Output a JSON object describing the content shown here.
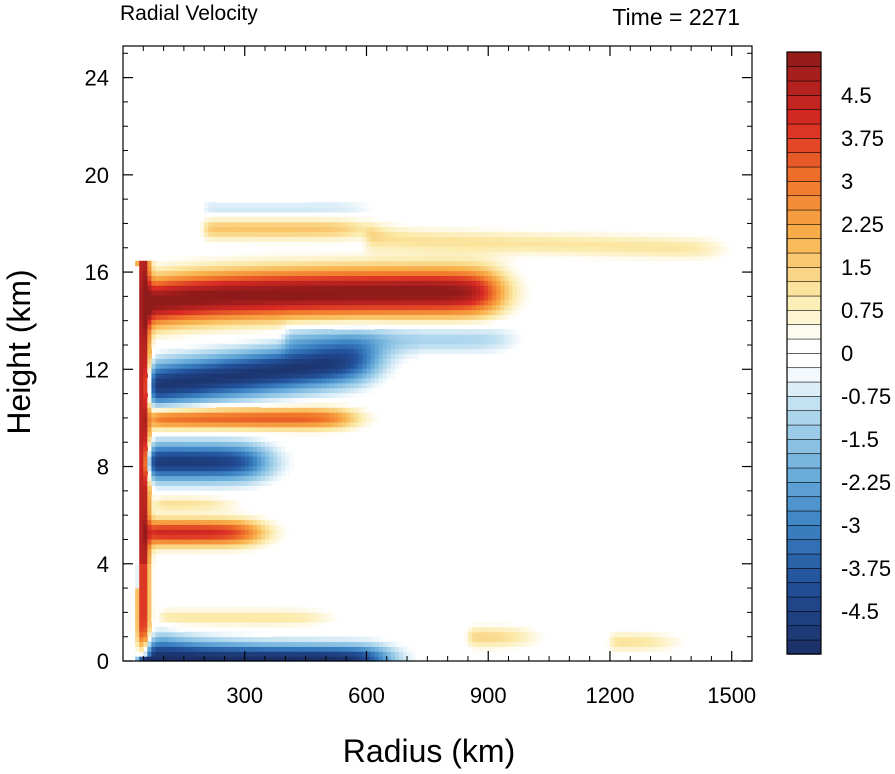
{
  "chart_data": {
    "type": "heatmap",
    "title": "Radial Velocity",
    "subtitle": "Time = 2271",
    "xlabel": "Radius (km)",
    "ylabel": "Height (km)",
    "xlim": [
      0,
      1550
    ],
    "ylim": [
      0,
      25.3
    ],
    "x_ticks": [
      300,
      600,
      900,
      1200,
      1500
    ],
    "x_tick_labels": [
      "300",
      "600",
      "900",
      "1200",
      "1500"
    ],
    "y_ticks": [
      0,
      4,
      8,
      12,
      16,
      20,
      24
    ],
    "y_tick_labels": [
      "0",
      "4",
      "8",
      "12",
      "16",
      "20",
      "24"
    ],
    "grid": false,
    "colorbar": {
      "orientation": "vertical",
      "placement": "right",
      "levels": [
        -5.25,
        -5.0,
        -4.75,
        -4.5,
        -4.25,
        -4.0,
        -3.75,
        -3.5,
        -3.25,
        -3.0,
        -2.75,
        -2.5,
        -2.25,
        -2.0,
        -1.75,
        -1.5,
        -1.25,
        -1.0,
        -0.75,
        -0.5,
        -0.25,
        0,
        0.25,
        0.5,
        0.75,
        1.0,
        1.25,
        1.5,
        1.75,
        2.0,
        2.25,
        2.5,
        2.75,
        3.0,
        3.25,
        3.5,
        3.75,
        4.0,
        4.25,
        4.5,
        4.75,
        5.0,
        5.25
      ],
      "tick_values": [
        4.5,
        3.75,
        3,
        2.25,
        1.5,
        0.75,
        0,
        -0.75,
        -1.5,
        -2.25,
        -3,
        -3.75,
        -4.5
      ],
      "tick_labels": [
        "4.5",
        "3.75",
        "3",
        "2.25",
        "1.5",
        "0.75",
        "0",
        "-0.75",
        "-1.5",
        "-2.25",
        "-3",
        "-3.75",
        "-4.5"
      ],
      "color_stops": [
        {
          "v": -5.25,
          "c": "#1b2f66"
        },
        {
          "v": -4.0,
          "c": "#22509a"
        },
        {
          "v": -3.0,
          "c": "#3b82c3"
        },
        {
          "v": -2.0,
          "c": "#6fb1dc"
        },
        {
          "v": -1.0,
          "c": "#b6dbef"
        },
        {
          "v": -0.25,
          "c": "#ffffff"
        },
        {
          "v": 0.25,
          "c": "#ffffff"
        },
        {
          "v": 1.0,
          "c": "#fbeaa9"
        },
        {
          "v": 2.0,
          "c": "#f9b34d"
        },
        {
          "v": 3.0,
          "c": "#f0762a"
        },
        {
          "v": 4.0,
          "c": "#d92a24"
        },
        {
          "v": 5.25,
          "c": "#8f1a1a"
        }
      ]
    },
    "features": [
      {
        "desc": "upper-level outflow",
        "r_range": [
          60,
          920
        ],
        "z_center": 15.2,
        "peak": 5.3
      },
      {
        "desc": "inflow below outflow",
        "r_range": [
          60,
          700
        ],
        "z_center": 11.8,
        "peak": -5.0
      },
      {
        "desc": "mid-level outflow",
        "r_range": [
          60,
          560
        ],
        "z_center": 10.0,
        "peak": 3.0
      },
      {
        "desc": "mid-level inflow",
        "r_range": [
          60,
          350
        ],
        "z_center": 8.2,
        "peak": -4.8
      },
      {
        "desc": "low-level outflow",
        "r_range": [
          60,
          350
        ],
        "z_center": 5.4,
        "peak": 4.0
      },
      {
        "desc": "boundary-layer inflow",
        "r_range": [
          40,
          600
        ],
        "z_center": 0.3,
        "peak": -5.2
      },
      {
        "desc": "upper outflow layer",
        "r_range": [
          200,
          1470
        ],
        "z_center": 17.5,
        "peak": 1.2
      },
      {
        "desc": "eyewall outflow",
        "r_range": [
          35,
          70
        ],
        "z_center": 1.5,
        "peak": 4.5
      },
      {
        "desc": "weak near-surface outflow",
        "r_range": [
          100,
          1450
        ],
        "z_center": 1.0,
        "peak": 0.9
      }
    ]
  }
}
